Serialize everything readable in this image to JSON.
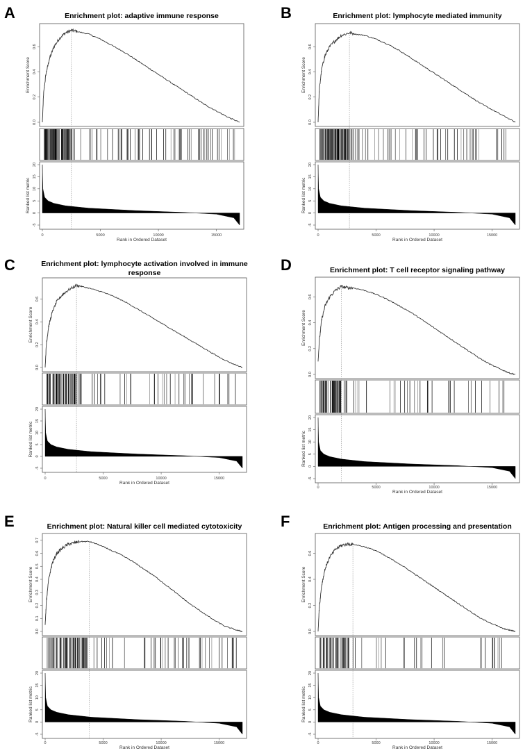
{
  "figure": {
    "panels": [
      {
        "letter": "A",
        "title_lines": [
          "Enrichment plot: adaptive immune response"
        ],
        "es_ylabel": "Enrichment Score",
        "metric_ylabel": "Ranked list metric",
        "xlabel": "Rank in Ordered Dataset"
      },
      {
        "letter": "B",
        "title_lines": [
          "Enrichment plot: lymphocyte mediated immunity"
        ],
        "es_ylabel": "Enrichment Score",
        "metric_ylabel": "Ranked list metric",
        "xlabel": "Rank in Ordered Dataset"
      },
      {
        "letter": "C",
        "title_lines": [
          "Enrichment plot: lymphocyte activation involved in immune",
          "response"
        ],
        "es_ylabel": "Enrichment Score",
        "metric_ylabel": "Ranked list metric",
        "xlabel": "Rank in Ordered Dataset"
      },
      {
        "letter": "D",
        "title_lines": [
          "Enrichment plot: T cell receptor signaling pathway"
        ],
        "es_ylabel": "Enrichment Score",
        "metric_ylabel": "Ranked list metric",
        "xlabel": "Rank in Ordered Dataset"
      },
      {
        "letter": "E",
        "title_lines": [
          "Enrichment plot: Natural killer cell mediated cytotoxicity"
        ],
        "es_ylabel": "Enrichment Score",
        "metric_ylabel": "Ranked list metric",
        "xlabel": "Rank in Ordered Dataset"
      },
      {
        "letter": "F",
        "title_lines": [
          "Enrichment plot: Antigen processing and presentation"
        ],
        "es_ylabel": "Enrichment Score",
        "metric_ylabel": "Ranked list metric",
        "xlabel": "Rank in Ordered Dataset"
      }
    ]
  },
  "chart_data": [
    {
      "panel": "A",
      "type": "line",
      "title": "Enrichment plot: adaptive immune response",
      "x_ticks": [
        0,
        5000,
        10000,
        15000
      ],
      "x_tick_labels": [
        "0",
        "5000",
        "10000",
        "15000"
      ],
      "xlim": [
        0,
        17000
      ],
      "es_ylim": [
        0,
        0.75
      ],
      "es_y_ticks": [
        0.0,
        0.2,
        0.4,
        0.6
      ],
      "es_y_tick_labels": [
        "0.0",
        "0.2",
        "0.4",
        "0.6"
      ],
      "es_curve": {
        "x": [
          0,
          100,
          300,
          600,
          1000,
          1500,
          2000,
          2500,
          3000,
          4000,
          5000,
          6000,
          7000,
          8000,
          9000,
          10000,
          11000,
          12000,
          13000,
          14000,
          15000,
          16000,
          17000
        ],
        "y": [
          0.0,
          0.22,
          0.38,
          0.5,
          0.6,
          0.67,
          0.71,
          0.73,
          0.72,
          0.7,
          0.66,
          0.61,
          0.56,
          0.5,
          0.44,
          0.38,
          0.32,
          0.26,
          0.2,
          0.14,
          0.09,
          0.04,
          0.0
        ]
      },
      "peak_x": 2500,
      "hits_density": {
        "dense_until": 2400,
        "hits": 170
      },
      "metric_ylim": [
        -5,
        20
      ],
      "metric_y_ticks": [
        -5,
        0,
        5,
        10,
        15,
        20
      ],
      "metric_y_tick_labels": [
        "-5",
        "0",
        "5",
        "10",
        "15",
        "20"
      ],
      "metric_curve": {
        "x": [
          0,
          50,
          200,
          500,
          1000,
          2000,
          4000,
          8000,
          12000,
          15000,
          16500,
          17000
        ],
        "y": [
          20,
          10,
          6.5,
          5,
          4,
          3,
          2,
          1,
          0.3,
          -0.5,
          -2,
          -5
        ]
      }
    },
    {
      "panel": "B",
      "type": "line",
      "title": "Enrichment plot: lymphocyte mediated immunity",
      "x_ticks": [
        0,
        5000,
        10000,
        15000
      ],
      "x_tick_labels": [
        "0",
        "5000",
        "10000",
        "15000"
      ],
      "xlim": [
        0,
        17000
      ],
      "es_ylim": [
        0,
        0.75
      ],
      "es_y_ticks": [
        0.0,
        0.2,
        0.4,
        0.6
      ],
      "es_y_tick_labels": [
        "0.0",
        "0.2",
        "0.4",
        "0.6"
      ],
      "es_curve": {
        "x": [
          0,
          100,
          300,
          600,
          1000,
          1500,
          2000,
          2700,
          3200,
          4000,
          5000,
          6000,
          7000,
          8000,
          9000,
          10000,
          11000,
          12000,
          13000,
          14000,
          15000,
          16000,
          17000
        ],
        "y": [
          0.0,
          0.25,
          0.42,
          0.53,
          0.6,
          0.65,
          0.69,
          0.71,
          0.7,
          0.69,
          0.66,
          0.62,
          0.57,
          0.51,
          0.45,
          0.39,
          0.33,
          0.27,
          0.21,
          0.15,
          0.1,
          0.05,
          0.0
        ]
      },
      "peak_x": 2700,
      "hits_density": {
        "dense_until": 2600,
        "hits": 160
      },
      "metric_ylim": [
        -5,
        20
      ],
      "metric_y_ticks": [
        -5,
        0,
        5,
        10,
        15,
        20
      ],
      "metric_y_tick_labels": [
        "-5",
        "0",
        "5",
        "10",
        "15",
        "20"
      ],
      "metric_curve": {
        "x": [
          0,
          50,
          200,
          500,
          1000,
          2000,
          4000,
          8000,
          12000,
          15000,
          16500,
          17000
        ],
        "y": [
          20,
          10,
          6.5,
          5,
          4,
          3,
          2,
          1,
          0.3,
          -0.5,
          -2,
          -5
        ]
      }
    },
    {
      "panel": "C",
      "type": "line",
      "title": "Enrichment plot: lymphocyte activation involved in immune response",
      "x_ticks": [
        0,
        5000,
        10000,
        15000
      ],
      "x_tick_labels": [
        "0",
        "5000",
        "10000",
        "15000"
      ],
      "xlim": [
        0,
        17000
      ],
      "es_ylim": [
        0,
        0.75
      ],
      "es_y_ticks": [
        0.0,
        0.2,
        0.4,
        0.6
      ],
      "es_y_tick_labels": [
        "0.0",
        "0.2",
        "0.4",
        "0.6"
      ],
      "es_curve": {
        "x": [
          0,
          100,
          300,
          600,
          1000,
          1500,
          2000,
          2700,
          3200,
          4000,
          5000,
          6000,
          7000,
          8000,
          9000,
          10000,
          11000,
          12000,
          13000,
          14000,
          15000,
          16000,
          17000
        ],
        "y": [
          0.0,
          0.2,
          0.36,
          0.48,
          0.58,
          0.64,
          0.68,
          0.72,
          0.71,
          0.69,
          0.66,
          0.62,
          0.57,
          0.51,
          0.45,
          0.39,
          0.33,
          0.27,
          0.21,
          0.15,
          0.09,
          0.04,
          0.0
        ]
      },
      "peak_x": 2700,
      "hits_density": {
        "dense_until": 2500,
        "hits": 110
      },
      "metric_ylim": [
        -5,
        20
      ],
      "metric_y_ticks": [
        -5,
        0,
        5,
        10,
        15,
        20
      ],
      "metric_y_tick_labels": [
        "-5",
        "0",
        "5",
        "10",
        "15",
        "20"
      ],
      "metric_curve": {
        "x": [
          0,
          50,
          200,
          500,
          1000,
          2000,
          4000,
          8000,
          12000,
          15000,
          16500,
          17000
        ],
        "y": [
          20,
          10,
          6.5,
          5,
          4,
          3,
          2,
          1,
          0.3,
          -0.5,
          -2,
          -5
        ]
      }
    },
    {
      "panel": "D",
      "type": "line",
      "title": "Enrichment plot: T cell receptor signaling pathway",
      "x_ticks": [
        0,
        5000,
        10000,
        15000
      ],
      "x_tick_labels": [
        "0",
        "5000",
        "10000",
        "15000"
      ],
      "xlim": [
        0,
        17000
      ],
      "es_ylim": [
        0,
        0.72
      ],
      "es_y_ticks": [
        0.0,
        0.2,
        0.4,
        0.6
      ],
      "es_y_tick_labels": [
        "0.0",
        "0.2",
        "0.4",
        "0.6"
      ],
      "es_curve": {
        "x": [
          0,
          100,
          300,
          600,
          1000,
          1500,
          2000,
          2500,
          3000,
          4000,
          5000,
          6000,
          7000,
          8000,
          9000,
          10000,
          11000,
          12000,
          13000,
          14000,
          15000,
          16000,
          16500,
          17000
        ],
        "y": [
          0.1,
          0.25,
          0.42,
          0.53,
          0.6,
          0.65,
          0.68,
          0.67,
          0.67,
          0.65,
          0.62,
          0.58,
          0.53,
          0.48,
          0.42,
          0.36,
          0.3,
          0.24,
          0.18,
          0.12,
          0.07,
          0.03,
          0.01,
          0.0
        ]
      },
      "peak_x": 2000,
      "hits_density": {
        "dense_until": 1800,
        "hits": 95
      },
      "metric_ylim": [
        -5,
        20
      ],
      "metric_y_ticks": [
        -5,
        0,
        5,
        10,
        15,
        20
      ],
      "metric_y_tick_labels": [
        "-5",
        "0",
        "5",
        "10",
        "15",
        "20"
      ],
      "metric_curve": {
        "x": [
          0,
          50,
          200,
          500,
          1000,
          2000,
          4000,
          8000,
          12000,
          15000,
          16500,
          17000
        ],
        "y": [
          20,
          10,
          6.5,
          5,
          4,
          3,
          2,
          1,
          0.3,
          -0.5,
          -2,
          -5
        ]
      }
    },
    {
      "panel": "E",
      "type": "line",
      "title": "Enrichment plot: Natural killer cell mediated cytotoxicity",
      "x_ticks": [
        0,
        5000,
        10000,
        15000
      ],
      "x_tick_labels": [
        "0",
        "5000",
        "10000",
        "15000"
      ],
      "xlim": [
        0,
        17000
      ],
      "es_ylim": [
        0,
        0.72
      ],
      "es_y_ticks": [
        0.0,
        0.1,
        0.2,
        0.3,
        0.4,
        0.5,
        0.6,
        0.7
      ],
      "es_y_tick_labels": [
        "0.0",
        "0.1",
        "0.2",
        "0.3",
        "0.4",
        "0.5",
        "0.6",
        "0.7"
      ],
      "es_curve": {
        "x": [
          0,
          100,
          300,
          600,
          1000,
          1500,
          2000,
          2500,
          3000,
          3800,
          4500,
          5500,
          6500,
          7500,
          8500,
          9500,
          10500,
          11500,
          12500,
          13500,
          14500,
          15500,
          16500,
          17000
        ],
        "y": [
          0.05,
          0.22,
          0.4,
          0.52,
          0.6,
          0.64,
          0.67,
          0.68,
          0.69,
          0.69,
          0.67,
          0.63,
          0.59,
          0.54,
          0.48,
          0.42,
          0.35,
          0.28,
          0.21,
          0.15,
          0.09,
          0.04,
          0.01,
          0.0
        ]
      },
      "peak_x": 3800,
      "hits_density": {
        "dense_until": 3600,
        "hits": 120
      },
      "metric_ylim": [
        -5,
        20
      ],
      "metric_y_ticks": [
        -5,
        0,
        5,
        10,
        15,
        20
      ],
      "metric_y_tick_labels": [
        "-5",
        "0",
        "5",
        "10",
        "15",
        "20"
      ],
      "metric_curve": {
        "x": [
          0,
          50,
          200,
          500,
          1000,
          2000,
          4000,
          8000,
          12000,
          15000,
          16500,
          17000
        ],
        "y": [
          20,
          10,
          6.5,
          5,
          4,
          3,
          2,
          1,
          0.3,
          -0.5,
          -2,
          -5
        ]
      }
    },
    {
      "panel": "F",
      "type": "line",
      "title": "Enrichment plot: Antigen processing and presentation",
      "x_ticks": [
        0,
        5000,
        10000,
        15000
      ],
      "x_tick_labels": [
        "0",
        "5000",
        "10000",
        "15000"
      ],
      "xlim": [
        0,
        17000
      ],
      "es_ylim": [
        0,
        0.72
      ],
      "es_y_ticks": [
        0.0,
        0.2,
        0.4,
        0.6
      ],
      "es_y_tick_labels": [
        "0.0",
        "0.2",
        "0.4",
        "0.6"
      ],
      "es_curve": {
        "x": [
          0,
          100,
          300,
          600,
          1000,
          1500,
          2000,
          2500,
          3000,
          4000,
          5000,
          6000,
          7000,
          8000,
          9000,
          10000,
          11000,
          12000,
          13000,
          14000,
          15000,
          16000,
          16500,
          17000
        ],
        "y": [
          0.0,
          0.18,
          0.35,
          0.48,
          0.57,
          0.63,
          0.66,
          0.67,
          0.67,
          0.65,
          0.62,
          0.57,
          0.52,
          0.46,
          0.4,
          0.34,
          0.28,
          0.22,
          0.16,
          0.1,
          0.06,
          0.02,
          0.01,
          0.0
        ]
      },
      "peak_x": 3000,
      "hits_density": {
        "dense_until": 2600,
        "hits": 70
      },
      "metric_ylim": [
        -5,
        20
      ],
      "metric_y_ticks": [
        -5,
        0,
        5,
        10,
        15,
        20
      ],
      "metric_y_tick_labels": [
        "-5",
        "0",
        "5",
        "10",
        "15",
        "20"
      ],
      "metric_curve": {
        "x": [
          0,
          50,
          200,
          500,
          1000,
          2000,
          4000,
          8000,
          12000,
          15000,
          16500,
          17000
        ],
        "y": [
          20,
          10,
          6.5,
          5,
          4,
          3,
          2,
          1,
          0.3,
          -0.5,
          -2,
          -5
        ]
      }
    }
  ]
}
